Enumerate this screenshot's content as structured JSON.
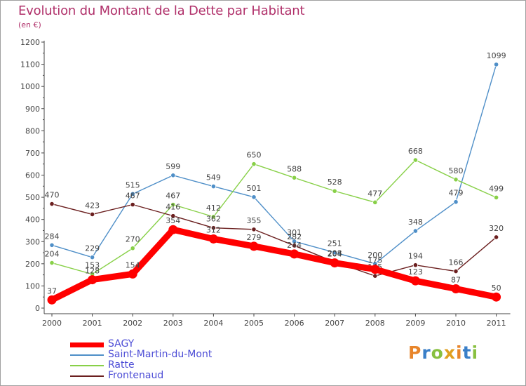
{
  "header": {
    "title": "Evolution du Montant de la Dette par Habitant",
    "subtitle": "(en €)"
  },
  "logo": {
    "text": "Proxiti",
    "colors": [
      "#e8852a",
      "#3a7fc8",
      "#88c040",
      "#e0a020"
    ]
  },
  "chart_data": {
    "type": "line",
    "title": "Evolution du Montant de la Dette par Habitant",
    "subtitle": "(en €)",
    "xlabel": "",
    "ylabel": "",
    "categories": [
      "2000",
      "2001",
      "2002",
      "2003",
      "2004",
      "2005",
      "2006",
      "2007",
      "2008",
      "2009",
      "2010",
      "2011"
    ],
    "y_ticks": [
      "0",
      "100",
      "200",
      "300",
      "400",
      "500",
      "600",
      "700",
      "800",
      "900",
      "1000",
      "1100",
      "1200"
    ],
    "ylim": [
      0,
      1200
    ],
    "grid": false,
    "legend": "bottom-left",
    "series": [
      {
        "name": "SAGY",
        "color": "#ff0000",
        "emphasis": true,
        "values": [
          37,
          128,
          154,
          354,
          312,
          279,
          244,
          204,
          175,
          123,
          87,
          50
        ]
      },
      {
        "name": "Saint-Martin-du-Mont",
        "color": "#4f8fc8",
        "values": [
          284,
          229,
          515,
          599,
          549,
          501,
          301,
          251,
          200,
          348,
          479,
          1099
        ]
      },
      {
        "name": "Ratte",
        "color": "#88d048",
        "values": [
          204,
          153,
          270,
          467,
          412,
          650,
          588,
          528,
          477,
          668,
          580,
          499
        ]
      },
      {
        "name": "Frontenaud",
        "color": "#6b1f1f",
        "values": [
          470,
          423,
          467,
          416,
          362,
          355,
          282,
          208,
          145,
          194,
          166,
          320
        ]
      }
    ]
  }
}
